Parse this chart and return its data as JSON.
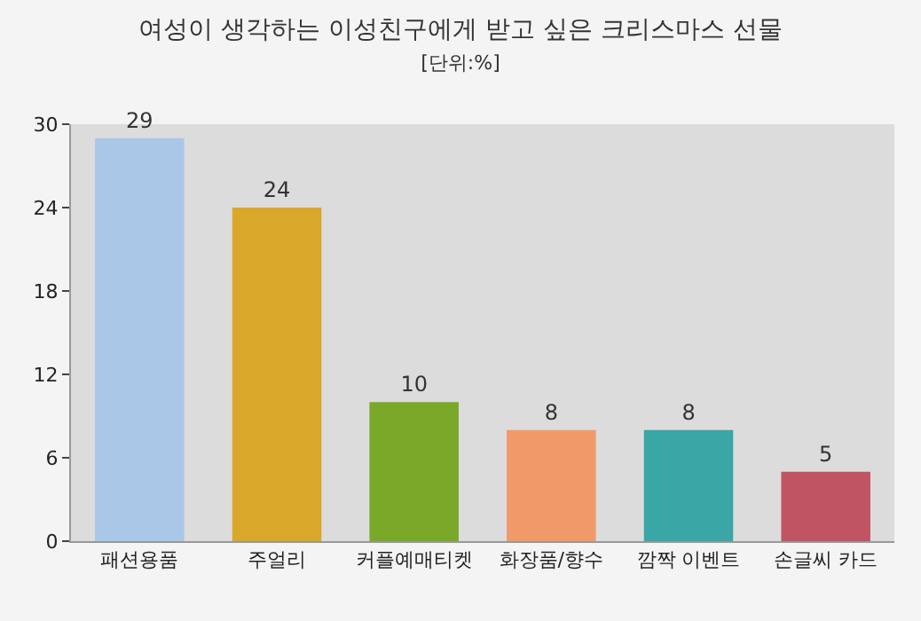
{
  "chart_data": {
    "type": "bar",
    "title": "여성이 생각하는 이성친구에게 받고 싶은 크리스마스 선물",
    "subtitle": "[단위:%]",
    "categories": [
      "패션용품",
      "주얼리",
      "커플예매티켓",
      "화장품/향수",
      "깜짝 이벤트",
      "손글씨 카드"
    ],
    "values": [
      29,
      24,
      10,
      8,
      8,
      5
    ],
    "colors": [
      "#a9c8e8",
      "#d9a72a",
      "#7aa828",
      "#f09a6a",
      "#3aa6a6",
      "#c05462"
    ],
    "ylim": [
      0,
      30
    ],
    "yticks": [
      0,
      6,
      12,
      18,
      24,
      30
    ],
    "data_labels": true,
    "grid": false
  }
}
